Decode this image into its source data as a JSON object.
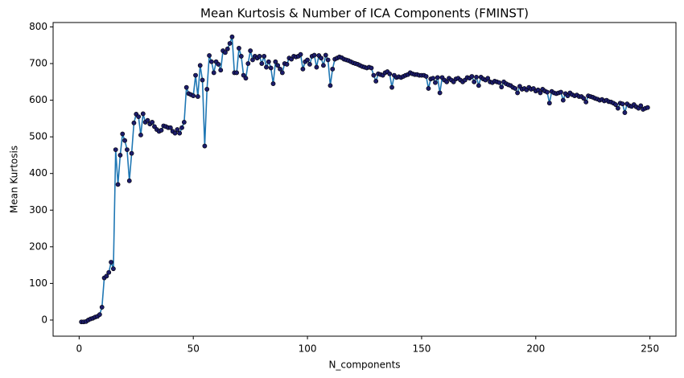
{
  "chart_data": {
    "type": "line",
    "title": "Mean Kurtosis & Number of ICA Components (FMINST)",
    "x_label": "N_components",
    "y_label": "Mean Kurtosis",
    "x": [
      1,
      2,
      3,
      4,
      5,
      6,
      7,
      8,
      9,
      10,
      11,
      12,
      13,
      14,
      15,
      16,
      17,
      18,
      19,
      20,
      21,
      22,
      23,
      24,
      25,
      26,
      27,
      28,
      29,
      30,
      31,
      32,
      33,
      34,
      35,
      36,
      37,
      38,
      39,
      40,
      41,
      42,
      43,
      44,
      45,
      46,
      47,
      48,
      49,
      50,
      51,
      52,
      53,
      54,
      55,
      56,
      57,
      58,
      59,
      60,
      61,
      62,
      63,
      64,
      65,
      66,
      67,
      68,
      69,
      70,
      71,
      72,
      73,
      74,
      75,
      76,
      77,
      78,
      79,
      80,
      81,
      82,
      83,
      84,
      85,
      86,
      87,
      88,
      89,
      90,
      91,
      92,
      93,
      94,
      95,
      96,
      97,
      98,
      99,
      100,
      101,
      102,
      103,
      104,
      105,
      106,
      107,
      108,
      109,
      110,
      111,
      112,
      113,
      114,
      115,
      116,
      117,
      118,
      119,
      120,
      121,
      122,
      123,
      124,
      125,
      126,
      127,
      128,
      129,
      130,
      131,
      132,
      133,
      134,
      135,
      136,
      137,
      138,
      139,
      140,
      141,
      142,
      143,
      144,
      145,
      146,
      147,
      148,
      149,
      150,
      151,
      152,
      153,
      154,
      155,
      156,
      157,
      158,
      159,
      160,
      161,
      162,
      163,
      164,
      165,
      166,
      167,
      168,
      169,
      170,
      171,
      172,
      173,
      174,
      175,
      176,
      177,
      178,
      179,
      180,
      181,
      182,
      183,
      184,
      185,
      186,
      187,
      188,
      189,
      190,
      191,
      192,
      193,
      194,
      195,
      196,
      197,
      198,
      199,
      200,
      201,
      202,
      203,
      204,
      205,
      206,
      207,
      208,
      209,
      210,
      211,
      212,
      213,
      214,
      215,
      216,
      217,
      218,
      219,
      220,
      221,
      222,
      223,
      224,
      225,
      226,
      227,
      228,
      229,
      230,
      231,
      232,
      233,
      234,
      235,
      236,
      237,
      238,
      239,
      240,
      241,
      242,
      243,
      244,
      245,
      246,
      247,
      248,
      249
    ],
    "series": [
      {
        "color": "#1f77b4",
        "marker_color": "#1c1c6b",
        "values": [
          -5,
          -5,
          -4,
          0,
          3,
          5,
          8,
          10,
          15,
          35,
          115,
          120,
          130,
          158,
          140,
          465,
          370,
          450,
          508,
          490,
          465,
          380,
          455,
          538,
          562,
          555,
          505,
          563,
          540,
          545,
          535,
          540,
          528,
          520,
          515,
          518,
          530,
          528,
          525,
          525,
          515,
          510,
          520,
          510,
          525,
          540,
          635,
          618,
          615,
          612,
          668,
          610,
          695,
          655,
          475,
          630,
          722,
          705,
          675,
          705,
          698,
          682,
          735,
          730,
          740,
          755,
          773,
          675,
          675,
          742,
          720,
          668,
          660,
          700,
          735,
          710,
          720,
          715,
          720,
          700,
          720,
          690,
          705,
          688,
          645,
          705,
          695,
          685,
          675,
          700,
          698,
          715,
          712,
          720,
          718,
          720,
          725,
          685,
          705,
          710,
          698,
          720,
          723,
          690,
          722,
          715,
          695,
          723,
          710,
          640,
          685,
          712,
          715,
          718,
          716,
          712,
          710,
          708,
          705,
          702,
          700,
          698,
          695,
          692,
          690,
          688,
          690,
          688,
          668,
          652,
          672,
          670,
          668,
          675,
          678,
          672,
          635,
          668,
          662,
          664,
          662,
          665,
          668,
          670,
          675,
          672,
          670,
          670,
          668,
          668,
          668,
          665,
          632,
          658,
          660,
          648,
          662,
          620,
          662,
          655,
          650,
          660,
          655,
          650,
          658,
          660,
          655,
          650,
          655,
          662,
          660,
          665,
          650,
          663,
          640,
          663,
          658,
          655,
          660,
          650,
          648,
          652,
          650,
          648,
          636,
          650,
          645,
          642,
          640,
          635,
          632,
          620,
          638,
          630,
          632,
          628,
          635,
          630,
          632,
          625,
          628,
          620,
          630,
          625,
          622,
          592,
          624,
          620,
          618,
          620,
          622,
          600,
          618,
          612,
          620,
          615,
          612,
          614,
          610,
          610,
          605,
          595,
          612,
          610,
          608,
          605,
          603,
          600,
          602,
          598,
          600,
          596,
          595,
          592,
          588,
          578,
          592,
          590,
          566,
          590,
          585,
          583,
          588,
          582,
          578,
          585,
          575,
          578,
          580
        ]
      }
    ],
    "xlim": [
      -11.4,
      261.4
    ],
    "ylim": [
      -44,
      812
    ],
    "xticks": [
      0,
      50,
      100,
      150,
      200,
      250
    ],
    "yticks": [
      0,
      100,
      200,
      300,
      400,
      500,
      600,
      700,
      800
    ],
    "grid": false
  }
}
